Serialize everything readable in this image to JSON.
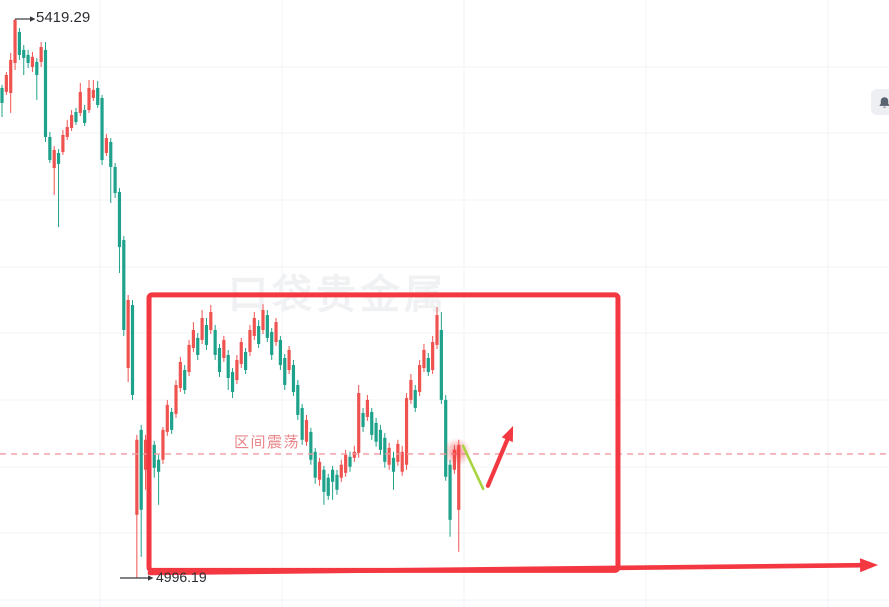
{
  "chart": {
    "high_label": "5419.29",
    "low_label": "4996.19",
    "watermark": "口袋贵金属"
  },
  "ui": {
    "bell_icon": "notification-bell"
  },
  "chart_data": {
    "type": "candlestick",
    "title": "",
    "convention": "red = up, green = down (Chinese market style)",
    "y_axis": {
      "high": 5419.29,
      "low": 4996.19,
      "gridline_step": 50,
      "grid": true
    },
    "legend_position": "none",
    "candles": [
      [
        5367.1,
        5369.4,
        5345.1,
        5355.7
      ],
      [
        5364.1,
        5379.2,
        5361.8,
        5376.9
      ],
      [
        5363.3,
        5393.6,
        5348.2,
        5388.3
      ],
      [
        5386.0,
        5419.29,
        5380.7,
        5418.6
      ],
      [
        5409.5,
        5412.5,
        5388.3,
        5392.1
      ],
      [
        5395.9,
        5399.6,
        5376.9,
        5389.8
      ],
      [
        5392.1,
        5395.9,
        5382.2,
        5386.0
      ],
      [
        5383.0,
        5394.3,
        5379.2,
        5390.6
      ],
      [
        5386.8,
        5389.8,
        5358.0,
        5376.9
      ],
      [
        5386.8,
        5401.9,
        5383.0,
        5398.1
      ],
      [
        5395.9,
        5401.9,
        5326.2,
        5330.0
      ],
      [
        5330.0,
        5333.8,
        5310.3,
        5312.6
      ],
      [
        5306.5,
        5323.2,
        5286.1,
        5320.2
      ],
      [
        5317.9,
        5320.9,
        5261.8,
        5309.6
      ],
      [
        5318.6,
        5335.3,
        5316.4,
        5331.5
      ],
      [
        5330.0,
        5342.9,
        5327.7,
        5337.5
      ],
      [
        5336.8,
        5350.4,
        5334.5,
        5346.6
      ],
      [
        5348.9,
        5352.0,
        5339.1,
        5341.3
      ],
      [
        5348.2,
        5370.9,
        5345.9,
        5364.1
      ],
      [
        5350.4,
        5354.2,
        5338.3,
        5340.6
      ],
      [
        5350.4,
        5373.1,
        5348.2,
        5367.1
      ],
      [
        5359.5,
        5373.1,
        5357.3,
        5365.6
      ],
      [
        5367.1,
        5372.4,
        5352.0,
        5354.2
      ],
      [
        5359.5,
        5361.8,
        5308.8,
        5312.6
      ],
      [
        5317.9,
        5332.3,
        5315.6,
        5329.2
      ],
      [
        5326.2,
        5329.2,
        5280.0,
        5307.3
      ],
      [
        5307.3,
        5310.3,
        5283.8,
        5287.6
      ],
      [
        5288.4,
        5291.4,
        5227.0,
        5246.7
      ],
      [
        5252.0,
        5255.0,
        5179.4,
        5183.9
      ],
      [
        5155.1,
        5210.4,
        5144.5,
        5206.6
      ],
      [
        5202.8,
        5206.6,
        5131.0,
        5134.7
      ],
      [
        5044.0,
        5104.5,
        4996.19,
        5100.8
      ],
      [
        5108.3,
        5112.1,
        5012.2,
        5047.8
      ],
      [
        5078.1,
        5104.5,
        5063.0,
        5100.8
      ],
      [
        5084.1,
        5106.0,
        5081.1,
        5103.0
      ],
      [
        5097.0,
        5100.0,
        5072.1,
        5079.6
      ],
      [
        5085.7,
        5089.4,
        5051.6,
        5076.6
      ],
      [
        5085.7,
        5110.5,
        5082.6,
        5108.3
      ],
      [
        5106.8,
        5131.0,
        5103.8,
        5127.2
      ],
      [
        5121.9,
        5124.9,
        5105.3,
        5108.3
      ],
      [
        5120.4,
        5146.0,
        5117.4,
        5142.3
      ],
      [
        5140.0,
        5163.5,
        5137.0,
        5159.7
      ],
      [
        5153.6,
        5157.4,
        5135.5,
        5138.5
      ],
      [
        5152.1,
        5176.4,
        5149.1,
        5172.6
      ],
      [
        5170.3,
        5189.9,
        5167.3,
        5183.9
      ],
      [
        5177.9,
        5181.6,
        5161.2,
        5165.0
      ],
      [
        5176.4,
        5199.0,
        5173.3,
        5193.0
      ],
      [
        5187.7,
        5193.0,
        5168.8,
        5172.6
      ],
      [
        5183.9,
        5202.8,
        5180.9,
        5197.5
      ],
      [
        5183.9,
        5187.7,
        5161.2,
        5165.0
      ],
      [
        5170.3,
        5173.3,
        5148.3,
        5152.1
      ],
      [
        5162.7,
        5179.4,
        5159.7,
        5176.4
      ],
      [
        5165.0,
        5168.8,
        5138.5,
        5147.6
      ],
      [
        5152.1,
        5155.1,
        5132.4,
        5137.0
      ],
      [
        5146.0,
        5165.0,
        5143.0,
        5161.2
      ],
      [
        5158.2,
        5177.9,
        5155.1,
        5174.8
      ],
      [
        5167.3,
        5170.3,
        5150.6,
        5153.6
      ],
      [
        5167.3,
        5187.7,
        5164.2,
        5183.9
      ],
      [
        5179.4,
        5197.5,
        5176.4,
        5193.0
      ],
      [
        5186.9,
        5191.4,
        5170.3,
        5173.3
      ],
      [
        5183.9,
        5203.5,
        5180.9,
        5199.0
      ],
      [
        5195.2,
        5199.0,
        5174.8,
        5177.9
      ],
      [
        5182.4,
        5185.4,
        5161.2,
        5165.0
      ],
      [
        5174.8,
        5193.0,
        5171.8,
        5189.9
      ],
      [
        5176.4,
        5179.4,
        5153.6,
        5157.4
      ],
      [
        5162.7,
        5165.7,
        5138.5,
        5142.3
      ],
      [
        5153.6,
        5171.8,
        5150.6,
        5168.8
      ],
      [
        5157.4,
        5161.2,
        5134.0,
        5137.0
      ],
      [
        5142.3,
        5146.0,
        5115.8,
        5119.6
      ],
      [
        5124.9,
        5127.9,
        5097.0,
        5100.8
      ],
      [
        5099.3,
        5119.6,
        5096.2,
        5115.8
      ],
      [
        5106.8,
        5109.8,
        5081.9,
        5085.7
      ],
      [
        5091.7,
        5094.7,
        5067.5,
        5072.1
      ],
      [
        5070.5,
        5087.2,
        5066.0,
        5084.1
      ],
      [
        5078.1,
        5081.1,
        5051.6,
        5061.4
      ],
      [
        5072.1,
        5075.1,
        5055.4,
        5058.4
      ],
      [
        5078.1,
        5081.1,
        5055.4,
        5069.0
      ],
      [
        5074.3,
        5078.1,
        5059.2,
        5063.0
      ],
      [
        5072.1,
        5085.7,
        5069.0,
        5081.9
      ],
      [
        5075.8,
        5093.2,
        5072.8,
        5089.4
      ],
      [
        5087.9,
        5091.7,
        5076.6,
        5080.4
      ],
      [
        5087.2,
        5096.2,
        5084.1,
        5091.7
      ],
      [
        5090.9,
        5142.3,
        5087.2,
        5136.2
      ],
      [
        5121.1,
        5124.9,
        5106.8,
        5110.5
      ],
      [
        5118.1,
        5134.7,
        5115.1,
        5131.0
      ],
      [
        5121.9,
        5124.9,
        5100.8,
        5104.5
      ],
      [
        5113.6,
        5117.4,
        5095.5,
        5099.3
      ],
      [
        5108.3,
        5112.1,
        5089.4,
        5093.2
      ],
      [
        5102.3,
        5106.0,
        5079.6,
        5084.1
      ],
      [
        5081.9,
        5098.5,
        5078.1,
        5094.7
      ],
      [
        5087.2,
        5091.7,
        5063.0,
        5076.6
      ],
      [
        5084.1,
        5100.8,
        5081.1,
        5097.7
      ],
      [
        5076.6,
        5096.2,
        5073.6,
        5091.7
      ],
      [
        5081.9,
        5136.2,
        5078.1,
        5132.4
      ],
      [
        5131.0,
        5150.6,
        5127.9,
        5146.0
      ],
      [
        5138.5,
        5142.3,
        5121.9,
        5124.9
      ],
      [
        5137.0,
        5161.2,
        5134.0,
        5157.4
      ],
      [
        5155.1,
        5173.3,
        5152.1,
        5168.8
      ],
      [
        5162.7,
        5166.5,
        5149.1,
        5152.1
      ],
      [
        5153.6,
        5179.4,
        5150.6,
        5174.8
      ],
      [
        5172.6,
        5201.3,
        5169.5,
        5195.2
      ],
      [
        5183.9,
        5197.5,
        5127.9,
        5131.0
      ],
      [
        5131.0,
        5134.7,
        5069.8,
        5072.8
      ],
      [
        5081.9,
        5085.7,
        5027.4,
        5040.2
      ],
      [
        5078.1,
        5097.0,
        5075.1,
        5093.2
      ],
      [
        5047.8,
        5100.8,
        5016.0,
        5097.0
      ]
    ],
    "annotations": {
      "range_text": "区间震荡",
      "high_callout": {
        "price": 5419.29,
        "candle": 3
      },
      "low_callout": {
        "price": 4996.19,
        "candle": 31
      },
      "dashed_level": 5090.1,
      "range_box": {
        "from_candle": 33.8,
        "to_candle": 141.6,
        "price_top": 5210.5,
        "price_bottom": 5002.0
      },
      "pullback_line": {
        "from_candle": 106.0,
        "from_price": 5096.2,
        "to_candle": 110.6,
        "to_price": 5063.7
      },
      "up_arrow": {
        "from_candle": 111.7,
        "from_price": 5066.0,
        "to_candle": 117.5,
        "to_price": 5111.3
      },
      "bottom_trend_arrow": {
        "from_candle": 34.0,
        "from_price": 5000.0,
        "to_candle": 201.4,
        "to_price": 5006.0
      },
      "pulse_marker": {
        "candle": 104.6,
        "price": 5091.6
      }
    },
    "colors": {
      "up": "#ef5350",
      "down": "#1fa28b",
      "annotation": "#f43841",
      "dashed_line": "#f09aa0",
      "range_text": "#e9868a",
      "pullback_line": "#a8d440",
      "grid": "#f2f3f6",
      "callout": "#34373c",
      "label_text": "#2b2e33",
      "bell_fill": "#5a6370",
      "bell_bg": "#edeff3"
    }
  }
}
